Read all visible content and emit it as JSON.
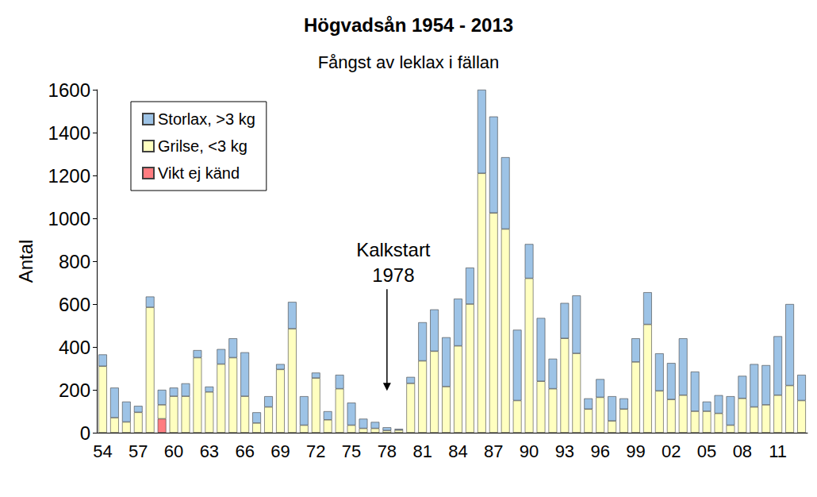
{
  "chart_data": {
    "type": "bar",
    "title": "Högvadsån 1954 - 2013",
    "subtitle": "Fångst av leklax i fällan",
    "y_label": "Antal",
    "stacked": true,
    "grid": false,
    "legend": "upper left",
    "annotation": {
      "lines": [
        "Kalkstart",
        "1978"
      ],
      "x": "78"
    },
    "categories": [
      "54",
      null,
      null,
      "57",
      null,
      null,
      "60",
      null,
      null,
      "63",
      null,
      null,
      "66",
      null,
      null,
      "69",
      null,
      null,
      "72",
      null,
      null,
      "75",
      null,
      null,
      "78",
      null,
      null,
      "81",
      null,
      null,
      "84",
      null,
      null,
      "87",
      null,
      null,
      "90",
      null,
      null,
      "93",
      null,
      null,
      "96",
      null,
      null,
      "99",
      null,
      null,
      "02",
      null,
      null,
      "05",
      null,
      null,
      "08",
      null,
      null,
      "11",
      null,
      null
    ],
    "ylim": [
      0,
      1600
    ],
    "yticks": [
      0,
      200,
      400,
      600,
      800,
      1000,
      1200,
      1400,
      1600
    ],
    "series": [
      {
        "name": "Storlax, >3 kg",
        "color": "#9dc3e6",
        "values": [
          55,
          140,
          95,
          30,
          50,
          70,
          40,
          60,
          35,
          25,
          70,
          90,
          205,
          50,
          50,
          25,
          125,
          135,
          25,
          40,
          65,
          105,
          45,
          30,
          15,
          6,
          30,
          180,
          195,
          230,
          220,
          170,
          390,
          450,
          335,
          330,
          160,
          295,
          140,
          165,
          270,
          50,
          85,
          115,
          50,
          110,
          150,
          175,
          170,
          265,
          185,
          45,
          85,
          135,
          105,
          200,
          185,
          275,
          380,
          120
        ]
      },
      {
        "name": "Grilse, <3 kg",
        "color": "#ffffc0",
        "values": [
          310,
          70,
          50,
          95,
          585,
          65,
          170,
          170,
          350,
          190,
          320,
          350,
          170,
          45,
          120,
          295,
          485,
          35,
          255,
          60,
          205,
          35,
          20,
          20,
          10,
          12,
          230,
          335,
          380,
          215,
          405,
          600,
          1210,
          1025,
          950,
          150,
          720,
          240,
          205,
          440,
          370,
          110,
          165,
          55,
          110,
          330,
          505,
          195,
          155,
          175,
          100,
          100,
          90,
          35,
          160,
          120,
          130,
          175,
          220,
          150
        ]
      },
      {
        "name": "Vikt ej känd",
        "color": "#ff7c80",
        "values": [
          null,
          null,
          null,
          null,
          null,
          65,
          null,
          null,
          null,
          null,
          null,
          null,
          null,
          null,
          null,
          null,
          null,
          null,
          null,
          null,
          null,
          null,
          null,
          null,
          null,
          null,
          null,
          null,
          null,
          null,
          null,
          null,
          null,
          null,
          null,
          null,
          null,
          null,
          null,
          null,
          null,
          null,
          null,
          null,
          null,
          null,
          null,
          null,
          null,
          null,
          null,
          null,
          null,
          null,
          null,
          null,
          null,
          null,
          null,
          null
        ]
      }
    ]
  }
}
